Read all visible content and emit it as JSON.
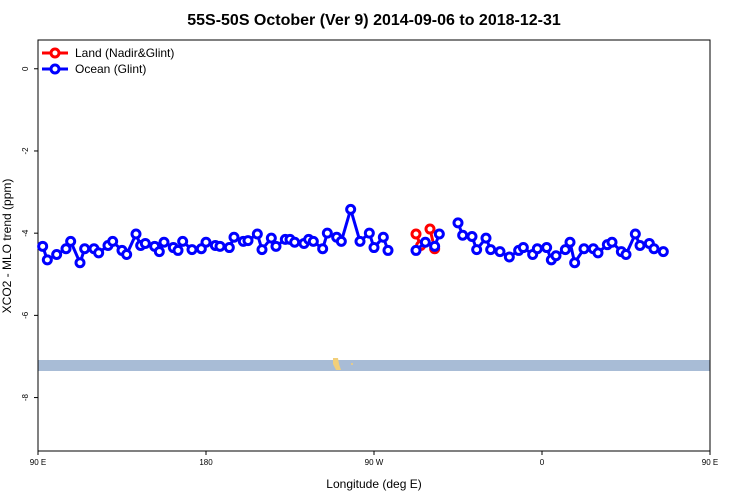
{
  "chart_data": {
    "type": "line",
    "title": "55S-50S October (Ver 9)   2014-09-06 to 2018-12-31",
    "xlabel": "Longitude (deg E)",
    "ylabel": "XCO2 - MLO trend (ppm)",
    "xlim": [
      90,
      450
    ],
    "ylim": [
      -9.3,
      0.7
    ],
    "x_ticks": [
      {
        "value": 90,
        "label": "90 E"
      },
      {
        "value": 180,
        "label": "180"
      },
      {
        "value": 270,
        "label": "90 W"
      },
      {
        "value": 360,
        "label": "0"
      },
      {
        "value": 450,
        "label": "90 E"
      },
      {
        "value": 540,
        "label": "180"
      }
    ],
    "y_ticks": [
      {
        "value": 0,
        "label": "0"
      },
      {
        "value": -2,
        "label": "-2"
      },
      {
        "value": -4,
        "label": "-4"
      },
      {
        "value": -6,
        "label": "-6"
      },
      {
        "value": -8,
        "label": "-8"
      }
    ],
    "legend_position": "top-left",
    "series": [
      {
        "name": "Land (Nadir&Glint)",
        "color": "#ff0000",
        "points": [
          [
            292.5,
            -4.02
          ],
          [
            295,
            -4.3
          ],
          [
            300,
            -3.9
          ],
          [
            302.5,
            -4.38
          ]
        ]
      },
      {
        "name": "Ocean (Glint)",
        "color": "#0000ff",
        "segments": [
          [
            [
              92.5,
              -4.32
            ],
            [
              95,
              -4.65
            ],
            [
              100,
              -4.52
            ],
            [
              105,
              -4.38
            ],
            [
              107.5,
              -4.2
            ],
            [
              112.5,
              -4.72
            ],
            [
              115,
              -4.38
            ],
            [
              120,
              -4.38
            ],
            [
              122.5,
              -4.48
            ],
            [
              127.5,
              -4.3
            ],
            [
              130,
              -4.2
            ],
            [
              135,
              -4.42
            ],
            [
              137.5,
              -4.52
            ],
            [
              142.5,
              -4.02
            ],
            [
              145,
              -4.3
            ],
            [
              147.5,
              -4.25
            ],
            [
              152.5,
              -4.32
            ],
            [
              155,
              -4.45
            ],
            [
              157.5,
              -4.22
            ],
            [
              162.5,
              -4.35
            ],
            [
              165,
              -4.42
            ],
            [
              167.5,
              -4.2
            ],
            [
              172.5,
              -4.4
            ],
            [
              177.5,
              -4.38
            ],
            [
              180,
              -4.22
            ],
            [
              185,
              -4.3
            ],
            [
              187.5,
              -4.32
            ],
            [
              192.5,
              -4.35
            ],
            [
              195,
              -4.1
            ],
            [
              200,
              -4.2
            ],
            [
              202.5,
              -4.18
            ],
            [
              207.5,
              -4.02
            ],
            [
              210,
              -4.4
            ],
            [
              215,
              -4.12
            ],
            [
              217.5,
              -4.32
            ],
            [
              222.5,
              -4.15
            ],
            [
              225,
              -4.15
            ],
            [
              227.5,
              -4.22
            ],
            [
              232.5,
              -4.25
            ],
            [
              235,
              -4.15
            ],
            [
              237.5,
              -4.2
            ],
            [
              242.5,
              -4.38
            ],
            [
              245,
              -4.0
            ],
            [
              250,
              -4.1
            ],
            [
              252.5,
              -4.2
            ],
            [
              257.5,
              -3.42
            ],
            [
              262.5,
              -4.2
            ],
            [
              267.5,
              -4.0
            ],
            [
              270,
              -4.35
            ],
            [
              275,
              -4.1
            ],
            [
              277.5,
              -4.42
            ]
          ],
          [
            [
              292.5,
              -4.42
            ],
            [
              297.5,
              -4.22
            ],
            [
              302.5,
              -4.32
            ],
            [
              305,
              -4.02
            ]
          ],
          [
            [
              315,
              -3.75
            ],
            [
              317.5,
              -4.05
            ],
            [
              322.5,
              -4.08
            ],
            [
              325,
              -4.4
            ],
            [
              330,
              -4.12
            ],
            [
              332.5,
              -4.4
            ],
            [
              337.5,
              -4.45
            ],
            [
              342.5,
              -4.58
            ],
            [
              347.5,
              -4.42
            ],
            [
              350,
              -4.35
            ],
            [
              355,
              -4.52
            ],
            [
              357.5,
              -4.38
            ],
            [
              362.5,
              -4.35
            ],
            [
              365,
              -4.65
            ],
            [
              367.5,
              -4.55
            ],
            [
              372.5,
              -4.4
            ],
            [
              375,
              -4.22
            ],
            [
              377.5,
              -4.72
            ],
            [
              382.5,
              -4.38
            ],
            [
              387.5,
              -4.38
            ],
            [
              390,
              -4.48
            ],
            [
              395,
              -4.28
            ],
            [
              397.5,
              -4.22
            ],
            [
              402.5,
              -4.45
            ],
            [
              405,
              -4.52
            ],
            [
              410,
              -4.02
            ],
            [
              412.5,
              -4.3
            ],
            [
              417.5,
              -4.25
            ],
            [
              420,
              -4.38
            ],
            [
              425,
              -4.45
            ]
          ]
        ]
      }
    ]
  }
}
